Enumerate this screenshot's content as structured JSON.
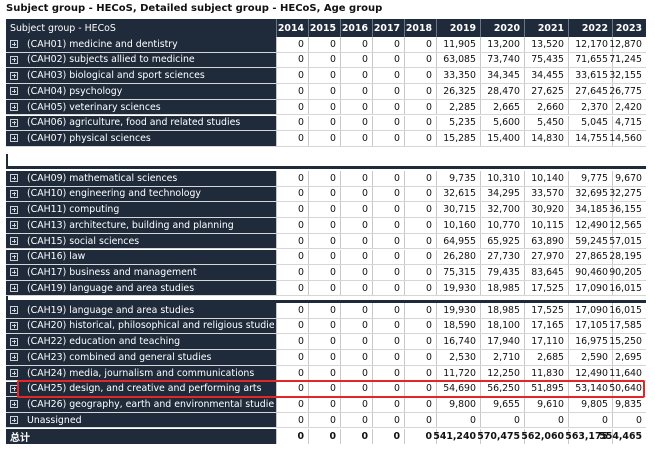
{
  "caption": "Subject group - HECoS, Detailed subject group - HECoS, Age group",
  "header": {
    "label": "Subject group - HECoS",
    "years": [
      "2014",
      "2015",
      "2016",
      "2017",
      "2018",
      "2019",
      "2020",
      "2021",
      "2022",
      "2023"
    ]
  },
  "rows": [
    {
      "label": "(CAH01) medicine and dentistry",
      "v": [
        "0",
        "0",
        "0",
        "0",
        "0",
        "11,905",
        "13,200",
        "13,520",
        "12,170",
        "12,870"
      ]
    },
    {
      "label": "(CAH02) subjects allied to medicine",
      "v": [
        "0",
        "0",
        "0",
        "0",
        "0",
        "63,085",
        "73,740",
        "75,435",
        "71,655",
        "71,245"
      ]
    },
    {
      "label": "(CAH03) biological and sport sciences",
      "v": [
        "0",
        "0",
        "0",
        "0",
        "0",
        "33,350",
        "34,345",
        "34,455",
        "33,615",
        "32,155"
      ]
    },
    {
      "label": "(CAH04) psychology",
      "v": [
        "0",
        "0",
        "0",
        "0",
        "0",
        "26,325",
        "28,470",
        "27,625",
        "27,645",
        "26,775"
      ]
    },
    {
      "label": "(CAH05) veterinary sciences",
      "v": [
        "0",
        "0",
        "0",
        "0",
        "0",
        "2,285",
        "2,665",
        "2,660",
        "2,370",
        "2,420"
      ]
    },
    {
      "label": "(CAH06) agriculture, food and related studies",
      "v": [
        "0",
        "0",
        "0",
        "0",
        "0",
        "5,235",
        "5,600",
        "5,450",
        "5,045",
        "4,715"
      ]
    },
    {
      "label": "(CAH07) physical sciences",
      "v": [
        "0",
        "0",
        "0",
        "0",
        "0",
        "15,285",
        "15,400",
        "14,830",
        "14,755",
        "14,560"
      ]
    },
    {
      "label": "(CAH09) mathematical sciences",
      "v": [
        "0",
        "0",
        "0",
        "0",
        "0",
        "9,735",
        "10,310",
        "10,140",
        "9,775",
        "9,670"
      ]
    },
    {
      "label": "(CAH10) engineering and technology",
      "v": [
        "0",
        "0",
        "0",
        "0",
        "0",
        "32,615",
        "34,295",
        "33,570",
        "32,695",
        "32,275"
      ]
    },
    {
      "label": "(CAH11) computing",
      "v": [
        "0",
        "0",
        "0",
        "0",
        "0",
        "30,715",
        "32,700",
        "30,920",
        "34,185",
        "36,155"
      ]
    },
    {
      "label": "(CAH13) architecture, building and planning",
      "v": [
        "0",
        "0",
        "0",
        "0",
        "0",
        "10,160",
        "10,770",
        "10,115",
        "12,490",
        "12,565"
      ]
    },
    {
      "label": "(CAH15) social sciences",
      "v": [
        "0",
        "0",
        "0",
        "0",
        "0",
        "64,955",
        "65,925",
        "63,890",
        "59,245",
        "57,015"
      ]
    },
    {
      "label": "(CAH16) law",
      "v": [
        "0",
        "0",
        "0",
        "0",
        "0",
        "26,280",
        "27,730",
        "27,970",
        "27,865",
        "28,195"
      ]
    },
    {
      "label": "(CAH17) business and management",
      "v": [
        "0",
        "0",
        "0",
        "0",
        "0",
        "75,315",
        "79,435",
        "83,645",
        "90,460",
        "90,205"
      ]
    },
    {
      "label": "(CAH19) language and area studies",
      "v": [
        "0",
        "0",
        "0",
        "0",
        "0",
        "19,930",
        "18,985",
        "17,525",
        "17,090",
        "16,015"
      ]
    },
    {
      "label": "(CAH19) language and area studies",
      "v": [
        "0",
        "0",
        "0",
        "0",
        "0",
        "19,930",
        "18,985",
        "17,525",
        "17,090",
        "16,015"
      ]
    },
    {
      "label": "(CAH20) historical, philosophical and religious studies",
      "v": [
        "0",
        "0",
        "0",
        "0",
        "0",
        "18,590",
        "18,100",
        "17,165",
        "17,105",
        "17,585"
      ]
    },
    {
      "label": "(CAH22) education and teaching",
      "v": [
        "0",
        "0",
        "0",
        "0",
        "0",
        "16,740",
        "17,940",
        "17,110",
        "16,975",
        "15,250"
      ]
    },
    {
      "label": "(CAH23) combined and general studies",
      "v": [
        "0",
        "0",
        "0",
        "0",
        "0",
        "2,530",
        "2,710",
        "2,685",
        "2,590",
        "2,695"
      ]
    },
    {
      "label": "(CAH24) media, journalism and communications",
      "v": [
        "0",
        "0",
        "0",
        "0",
        "0",
        "11,720",
        "12,250",
        "11,830",
        "12,490",
        "11,640"
      ]
    },
    {
      "label": "(CAH25) design, and creative and performing arts",
      "v": [
        "0",
        "0",
        "0",
        "0",
        "0",
        "54,690",
        "56,250",
        "51,895",
        "53,140",
        "50,640"
      ]
    },
    {
      "label": "(CAH26) geography, earth and environmental studies",
      "v": [
        "0",
        "0",
        "0",
        "0",
        "0",
        "9,800",
        "9,655",
        "9,610",
        "9,805",
        "9,835"
      ]
    },
    {
      "label": "Unassigned",
      "v": [
        "0",
        "0",
        "0",
        "0",
        "0",
        "0",
        "0",
        "0",
        "0",
        "0"
      ]
    }
  ],
  "total": {
    "label": "总计",
    "v": [
      "0",
      "0",
      "0",
      "0",
      "0",
      "541,240",
      "570,475",
      "562,060",
      "563,175",
      "554,465"
    ]
  }
}
